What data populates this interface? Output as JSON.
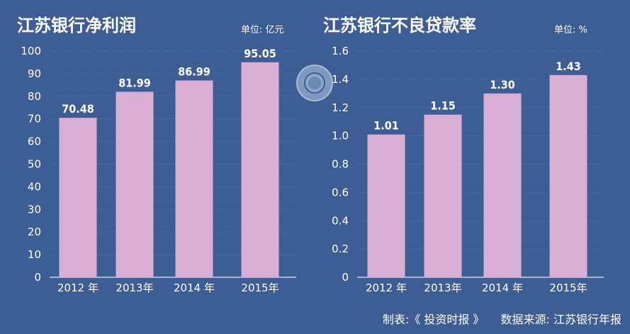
{
  "chart_data": [
    {
      "type": "bar",
      "title": "江苏银行净利润",
      "unit": "单位: 亿元",
      "categories": [
        "2012 年",
        "2013年",
        "2014 年",
        "2015年"
      ],
      "values": [
        70.48,
        81.99,
        86.99,
        95.05
      ],
      "value_labels": [
        "70.48",
        "81.99",
        "86.99",
        "95.05"
      ],
      "ylim": [
        0,
        100
      ],
      "yticks": [
        "0",
        "10",
        "20",
        "30",
        "40",
        "50",
        "60",
        "70",
        "80",
        "90",
        "100"
      ],
      "ytick_values": [
        0,
        10,
        20,
        30,
        40,
        50,
        60,
        70,
        80,
        90,
        100
      ]
    },
    {
      "type": "bar",
      "title": "江苏银行不良贷款率",
      "unit": "单位: %",
      "categories": [
        "2012 年",
        "2013年",
        "2014 年",
        "2015年"
      ],
      "values": [
        1.01,
        1.15,
        1.3,
        1.43
      ],
      "value_labels": [
        "1.01",
        "1.15",
        "1.30",
        "1.43"
      ],
      "ylim": [
        0,
        1.6
      ],
      "yticks": [
        "0",
        "0.2",
        "0.4",
        "0.6",
        "0.8",
        "1.0",
        "1.2",
        "1.4",
        "1.6"
      ],
      "ytick_values": [
        0,
        0.2,
        0.4,
        0.6,
        0.8,
        1.0,
        1.2,
        1.4,
        1.6
      ]
    }
  ],
  "footer": {
    "maker": "制表:《 投资时报 》",
    "source": "数据来源: 江苏银行年报"
  },
  "colors": {
    "background": "#3d5e94",
    "bar": "#d9aed4",
    "text": "#ffffff"
  }
}
